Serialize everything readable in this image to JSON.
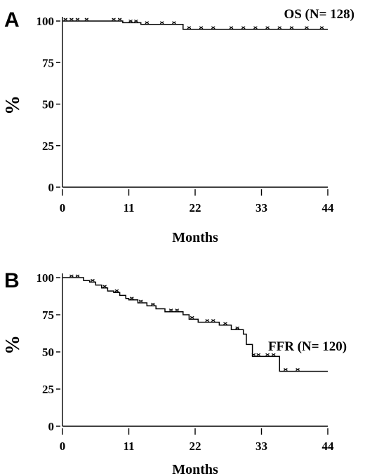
{
  "chart_data": [
    {
      "type": "line",
      "panel": "A",
      "annotation": "OS (N= 128)",
      "xlabel": "Months",
      "ylabel": "%",
      "xticks": [
        "0",
        "11",
        "22",
        "33",
        "44"
      ],
      "yticks": [
        "0",
        "25",
        "50",
        "75",
        "100"
      ],
      "xlim": [
        0,
        44
      ],
      "ylim": [
        0,
        100
      ],
      "grid": false,
      "series": [
        {
          "x": [
            0,
            10,
            10,
            13,
            13,
            20,
            20,
            44
          ],
          "y": [
            100,
            100,
            99,
            99,
            98,
            98,
            95,
            95
          ],
          "censored": [
            [
              0.5,
              100
            ],
            [
              1.5,
              100
            ],
            [
              2.5,
              100
            ],
            [
              4,
              100
            ],
            [
              8.5,
              100
            ],
            [
              9.5,
              100
            ],
            [
              11.3,
              99
            ],
            [
              12.2,
              99
            ],
            [
              14,
              98
            ],
            [
              16.5,
              98
            ],
            [
              18.5,
              98
            ],
            [
              21,
              95
            ],
            [
              23,
              95
            ],
            [
              25,
              95
            ],
            [
              28,
              95
            ],
            [
              30,
              95
            ],
            [
              32,
              95
            ],
            [
              34,
              95
            ],
            [
              36,
              95
            ],
            [
              38,
              95
            ],
            [
              40.5,
              95
            ],
            [
              43,
              95
            ]
          ]
        }
      ]
    },
    {
      "type": "line",
      "panel": "B",
      "annotation": "FFR (N= 120)",
      "xlabel": "Months",
      "ylabel": "%",
      "xticks": [
        "0",
        "11",
        "22",
        "33",
        "44"
      ],
      "yticks": [
        "0",
        "25",
        "50",
        "75",
        "100"
      ],
      "xlim": [
        0,
        44
      ],
      "ylim": [
        0,
        100
      ],
      "grid": false,
      "series": [
        {
          "x": [
            0,
            3.5,
            3.5,
            4.5,
            4.5,
            5.5,
            5.5,
            6.5,
            6.5,
            7.5,
            7.5,
            8.5,
            8.5,
            9.5,
            9.5,
            10.5,
            10.5,
            11,
            11,
            12.5,
            12.5,
            14,
            14,
            15.5,
            15.5,
            17,
            17,
            20,
            20,
            21,
            21,
            22.5,
            22.5,
            26,
            26,
            28,
            28,
            30,
            30,
            30.5,
            30.5,
            31.5,
            31.5,
            36,
            36,
            44
          ],
          "y": [
            100,
            100,
            98,
            98,
            97,
            97,
            95,
            95,
            93,
            93,
            91,
            91,
            90,
            90,
            88,
            88,
            86,
            86,
            85,
            85,
            83,
            83,
            81,
            81,
            79,
            79,
            77,
            77,
            75,
            75,
            72,
            72,
            70,
            70,
            68,
            68,
            65,
            65,
            62,
            62,
            55,
            55,
            47,
            47,
            37,
            37
          ],
          "censored": [
            [
              1.5,
              100
            ],
            [
              2.5,
              100
            ],
            [
              5,
              97
            ],
            [
              7,
              93
            ],
            [
              9,
              90
            ],
            [
              11.5,
              85
            ],
            [
              13,
              83
            ],
            [
              15,
              81
            ],
            [
              18,
              77
            ],
            [
              19,
              77
            ],
            [
              21.5,
              72
            ],
            [
              24,
              70
            ],
            [
              25,
              70
            ],
            [
              27,
              68
            ],
            [
              29,
              65
            ],
            [
              31.7,
              47
            ],
            [
              32.5,
              47
            ],
            [
              34,
              47
            ],
            [
              35,
              47
            ],
            [
              37,
              37
            ],
            [
              39,
              37
            ]
          ]
        }
      ]
    }
  ]
}
